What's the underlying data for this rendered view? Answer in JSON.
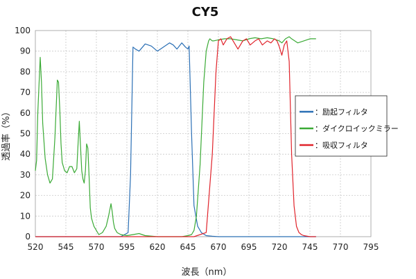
{
  "chart_data": {
    "type": "line",
    "title": "CY5",
    "xlabel": "波長（nm）",
    "ylabel": "透過率（%）",
    "xlim": [
      520,
      795
    ],
    "ylim": [
      0,
      100
    ],
    "xticks": [
      520,
      545,
      570,
      595,
      620,
      645,
      670,
      695,
      720,
      745,
      770,
      795
    ],
    "yticks": [
      0,
      10,
      20,
      30,
      40,
      50,
      60,
      70,
      80,
      90,
      100
    ],
    "grid": true,
    "legend": {
      "placement": "right",
      "prefix": "："
    },
    "series": [
      {
        "name": "励起フィルタ",
        "color": "#2a6fb5",
        "x": [
          520,
          590,
          596,
          598,
          600,
          602,
          605,
          610,
          615,
          620,
          625,
          630,
          633,
          636,
          640,
          643,
          645,
          646,
          648,
          650,
          653,
          656,
          660,
          665,
          670,
          750
        ],
        "y": [
          0,
          0,
          2,
          30,
          92,
          91,
          90,
          93.5,
          92.5,
          90,
          92,
          94,
          93,
          91,
          94,
          92,
          91,
          92.5,
          50,
          15,
          5,
          2,
          0.5,
          0.2,
          0,
          0
        ]
      },
      {
        "name": "ダイクロイックミラー",
        "color": "#3aaa35",
        "x": [
          520,
          521,
          522,
          524,
          525,
          526,
          528,
          530,
          532,
          534,
          536,
          538,
          539,
          540,
          541,
          542,
          544,
          546,
          548,
          550,
          552,
          554,
          555,
          556,
          557,
          558,
          559,
          560,
          561,
          562,
          563,
          564,
          565,
          566,
          567,
          568,
          570,
          572,
          575,
          578,
          580,
          582,
          583,
          584,
          585,
          587,
          590,
          595,
          600,
          605,
          610,
          620,
          630,
          640,
          645,
          648,
          650,
          652,
          655,
          658,
          660,
          662,
          663,
          664,
          665,
          666,
          670,
          675,
          680,
          685,
          690,
          695,
          700,
          705,
          710,
          715,
          720,
          722,
          725,
          728,
          730,
          735,
          740,
          745,
          750
        ],
        "y": [
          32,
          37,
          60,
          87,
          75,
          55,
          38,
          30,
          26,
          28,
          48,
          76,
          75,
          62,
          45,
          36,
          32,
          31,
          34,
          34,
          31,
          33,
          45,
          56,
          44,
          32,
          28,
          26,
          32,
          45,
          43,
          30,
          14,
          9,
          7,
          5,
          3,
          1,
          2,
          5,
          10,
          16,
          12,
          7,
          4,
          2,
          1,
          0.5,
          1,
          1.5,
          0.5,
          0,
          0,
          0,
          0.5,
          1,
          3,
          10,
          35,
          75,
          90,
          95,
          96,
          95.5,
          95,
          95,
          95.5,
          96,
          96,
          95.5,
          95,
          96,
          96.5,
          96,
          96.5,
          96,
          95,
          94,
          96,
          97,
          96,
          94,
          95,
          96,
          96
        ]
      },
      {
        "name": "吸収フィルタ",
        "color": "#e0222a",
        "x": [
          520,
          650,
          660,
          665,
          668,
          670,
          672,
          674,
          677,
          680,
          683,
          686,
          690,
          693,
          696,
          700,
          703,
          706,
          710,
          713,
          716,
          718,
          720,
          722,
          724,
          726,
          728,
          730,
          732,
          734,
          736,
          738,
          740,
          745,
          750
        ],
        "y": [
          0,
          0,
          2,
          40,
          80,
          95,
          96,
          93,
          96,
          97,
          94,
          91,
          95,
          96,
          93,
          95,
          96,
          93,
          95,
          94,
          96,
          95,
          92,
          88,
          93,
          95,
          85,
          40,
          15,
          5,
          2,
          1,
          0.5,
          0,
          0
        ]
      }
    ]
  }
}
